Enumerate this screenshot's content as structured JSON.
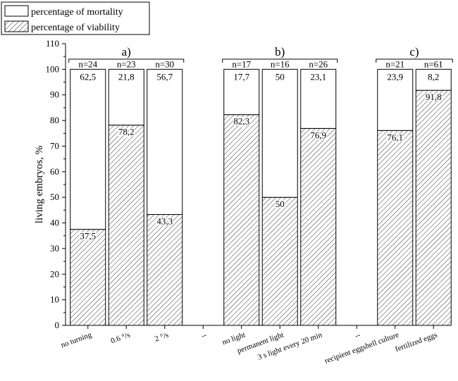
{
  "chart_data": {
    "type": "bar",
    "stacked": true,
    "ylabel": "living embryos, %",
    "ylim": [
      0,
      110
    ],
    "yticks": [
      0,
      10,
      20,
      30,
      40,
      50,
      60,
      70,
      80,
      90,
      100,
      110
    ],
    "legend": {
      "placement": "top-left",
      "entries": [
        {
          "label": "percentage of mortality",
          "pattern": "white"
        },
        {
          "label": "percentage of viability",
          "pattern": "hatched"
        }
      ]
    },
    "groups": [
      {
        "label": "a)",
        "categories": [
          "no turning",
          "0.6 °/s",
          "2 °/s"
        ]
      },
      {
        "label": "b)",
        "categories": [
          "no light",
          "permanent light",
          "3 s light every 20 min"
        ]
      },
      {
        "label": "c)",
        "categories": [
          "recipient eggshell culture",
          "fertilized eggs"
        ]
      }
    ],
    "categories": [
      "no turning",
      "0.6 °/s",
      "2 °/s",
      "--",
      "no light",
      "permanent light",
      "3 s light every 20 min",
      "--",
      "recipient eggshell culture",
      "fertilized eggs"
    ],
    "n_labels": [
      "n=24",
      "n=23",
      "n=30",
      "",
      "n=17",
      "n=16",
      "n=26",
      "",
      "n=21",
      "n=61"
    ],
    "series": [
      {
        "name": "percentage of viability",
        "values": [
          37.5,
          78.2,
          43.3,
          null,
          82.3,
          50,
          76.9,
          null,
          76.1,
          91.8
        ],
        "value_labels": [
          "37,5",
          "78,2",
          "43,3",
          "",
          "82,3",
          "50",
          "76,9",
          "",
          "76,1",
          "91,8"
        ]
      },
      {
        "name": "percentage of mortality",
        "values": [
          62.5,
          21.8,
          56.7,
          null,
          17.7,
          50,
          23.1,
          null,
          23.9,
          8.2
        ],
        "value_labels": [
          "62,5",
          "21,8",
          "56,7",
          "",
          "17,7",
          "50",
          "23,1",
          "",
          "23,9",
          "8,2"
        ]
      }
    ]
  }
}
